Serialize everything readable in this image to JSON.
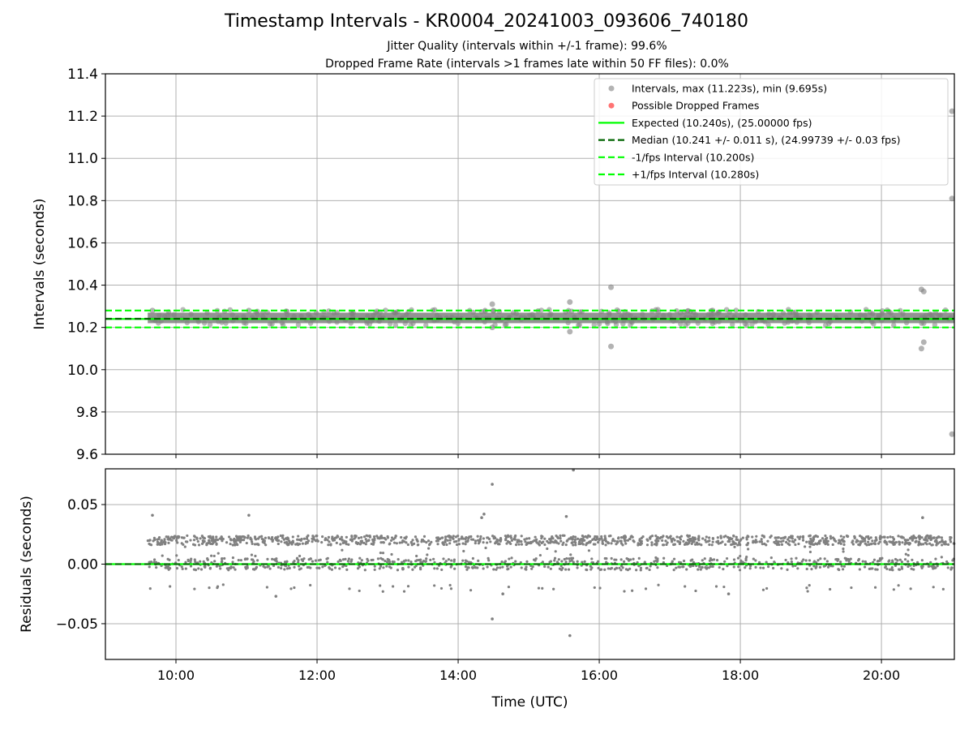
{
  "title": "Timestamp Intervals - KR0004_20241003_093606_740180",
  "subtitle_jitter": "Jitter Quality (intervals within +/-1 frame): 99.6%",
  "subtitle_dropped": "Dropped Frame Rate (intervals >1 frames late within 50 FF files): 0.0%",
  "colors": {
    "intervals": "#808080",
    "dropped": "#ff0000",
    "expected": "#00ff00",
    "median": "#006400",
    "fps_interval": "#00ff00",
    "grid": "#b0b0b0"
  },
  "chart_data": [
    {
      "type": "scatter",
      "panel": "top",
      "xlabel": "",
      "ylabel": "Intervals (seconds)",
      "xlim": [
        "09:00",
        "21:02"
      ],
      "ylim": [
        9.6,
        11.4
      ],
      "x_ticks": [
        "10:00",
        "12:00",
        "14:00",
        "16:00",
        "18:00",
        "20:00"
      ],
      "y_ticks": [
        9.6,
        9.8,
        10.0,
        10.2,
        10.4,
        10.6,
        10.8,
        11.0,
        11.2,
        11.4
      ],
      "y_tick_labels": [
        "9.6",
        "9.8",
        "10.0",
        "10.2",
        "10.4",
        "10.6",
        "10.8",
        "11.0",
        "11.2",
        "11.4"
      ],
      "grid": true,
      "legend_position": "top-right",
      "series": [
        {
          "name": "Intervals, max (11.223s), min (9.695s)",
          "kind": "scatter",
          "time_range": [
            "09:36",
            "21:02"
          ],
          "dense_band": [
            10.22,
            10.27
          ],
          "outliers": [
            {
              "x": "09:40",
              "y": 10.28
            },
            {
              "x": "11:02",
              "y": 10.28
            },
            {
              "x": "14:30",
              "y": 10.28
            },
            {
              "x": "14:29",
              "y": 10.31
            },
            {
              "x": "14:29",
              "y": 10.2
            },
            {
              "x": "15:35",
              "y": 10.32
            },
            {
              "x": "15:35",
              "y": 10.18
            },
            {
              "x": "16:10",
              "y": 10.39
            },
            {
              "x": "16:10",
              "y": 10.11
            },
            {
              "x": "20:34",
              "y": 10.38
            },
            {
              "x": "20:36",
              "y": 10.37
            },
            {
              "x": "20:34",
              "y": 10.1
            },
            {
              "x": "20:36",
              "y": 10.13
            },
            {
              "x": "21:00",
              "y": 11.223
            },
            {
              "x": "21:00",
              "y": 10.81
            },
            {
              "x": "21:00",
              "y": 9.695
            }
          ]
        },
        {
          "name": "Possible Dropped Frames",
          "kind": "scatter",
          "points": []
        },
        {
          "name": "Expected (10.240s), (25.00000 fps)",
          "kind": "hline",
          "y": 10.24
        },
        {
          "name": "Median (10.241 +/- 0.011 s), (24.99739 +/- 0.03 fps)",
          "kind": "hline",
          "y": 10.241
        },
        {
          "name": "-1/fps Interval (10.200s)",
          "kind": "hline",
          "y": 10.2
        },
        {
          "name": "+1/fps Interval (10.280s)",
          "kind": "hline",
          "y": 10.28
        }
      ]
    },
    {
      "type": "scatter",
      "panel": "bottom",
      "xlabel": "Time (UTC)",
      "ylabel": "Residuals (seconds)",
      "xlim": [
        "09:00",
        "21:02"
      ],
      "ylim": [
        -0.08,
        0.08
      ],
      "x_ticks": [
        "10:00",
        "12:00",
        "14:00",
        "16:00",
        "18:00",
        "20:00"
      ],
      "y_ticks": [
        -0.05,
        0.0,
        0.05
      ],
      "y_tick_labels": [
        "−0.05",
        "0.00",
        "0.05"
      ],
      "grid": true,
      "series": [
        {
          "name": "Residuals",
          "kind": "scatter",
          "time_range": [
            "09:36",
            "21:02"
          ],
          "band_upper": 0.02,
          "band_lower": 0.0,
          "outliers": [
            {
              "x": "09:40",
              "y": 0.041
            },
            {
              "x": "11:02",
              "y": 0.041
            },
            {
              "x": "14:20",
              "y": 0.039
            },
            {
              "x": "14:22",
              "y": 0.042
            },
            {
              "x": "14:29",
              "y": 0.067
            },
            {
              "x": "14:29",
              "y": -0.046
            },
            {
              "x": "15:32",
              "y": 0.04
            },
            {
              "x": "15:35",
              "y": -0.06
            },
            {
              "x": "15:38",
              "y": 0.079
            },
            {
              "x": "20:35",
              "y": 0.039
            },
            {
              "x": "11:25",
              "y": -0.027
            },
            {
              "x": "14:38",
              "y": -0.025
            },
            {
              "x": "17:50",
              "y": -0.025
            }
          ]
        },
        {
          "name": "Expected",
          "kind": "hline",
          "y": 0.0
        },
        {
          "name": "Median",
          "kind": "hline",
          "y": 0.0
        }
      ]
    }
  ]
}
